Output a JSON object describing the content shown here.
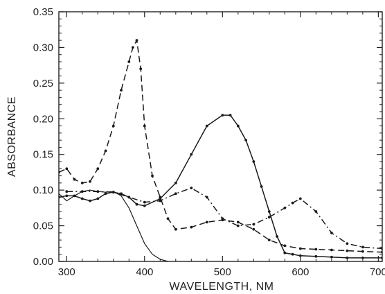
{
  "chart_data": {
    "type": "line",
    "title": "",
    "xlabel": "WAVELENGTH,  NM",
    "ylabel": "ABSORBANCE",
    "xlim": [
      290,
      705
    ],
    "ylim": [
      0,
      0.35
    ],
    "xticks": [
      300,
      400,
      500,
      600,
      700
    ],
    "yticks": [
      0.0,
      0.05,
      0.1,
      0.15,
      0.2,
      0.25,
      0.3,
      0.35
    ],
    "xtick_labels": [
      "300",
      "400",
      "500",
      "600",
      "700"
    ],
    "ytick_labels": [
      "0.00",
      "0.05",
      "0.10",
      "0.15",
      "0.20",
      "0.25",
      "0.30",
      "0.35"
    ],
    "grid": false,
    "legend": "none",
    "series": [
      {
        "style": "solid-thin",
        "markers": false,
        "x": [
          290,
          300,
          310,
          320,
          330,
          340,
          350,
          360,
          370,
          380,
          390,
          400,
          410,
          420,
          430
        ],
        "y": [
          0.095,
          0.085,
          0.092,
          0.098,
          0.1,
          0.098,
          0.097,
          0.098,
          0.092,
          0.075,
          0.05,
          0.025,
          0.01,
          0.003,
          0.0
        ]
      },
      {
        "style": "dashed",
        "markers": true,
        "x": [
          290,
          300,
          310,
          320,
          330,
          340,
          350,
          360,
          370,
          380,
          385,
          390,
          395,
          400,
          410,
          420,
          430,
          440,
          460,
          480,
          500,
          520,
          540,
          560,
          580,
          600,
          620,
          640,
          660,
          680,
          705
        ],
        "y": [
          0.125,
          0.13,
          0.115,
          0.11,
          0.112,
          0.13,
          0.155,
          0.19,
          0.24,
          0.28,
          0.3,
          0.31,
          0.27,
          0.19,
          0.12,
          0.09,
          0.06,
          0.045,
          0.048,
          0.055,
          0.058,
          0.055,
          0.045,
          0.03,
          0.022,
          0.018,
          0.017,
          0.016,
          0.015,
          0.014,
          0.013
        ]
      },
      {
        "style": "solid",
        "markers": true,
        "x": [
          290,
          300,
          310,
          320,
          330,
          340,
          350,
          360,
          370,
          380,
          390,
          400,
          420,
          440,
          460,
          480,
          500,
          510,
          520,
          530,
          540,
          550,
          560,
          570,
          580,
          590,
          600,
          620,
          640,
          660,
          680,
          705
        ],
        "y": [
          0.09,
          0.092,
          0.092,
          0.088,
          0.085,
          0.088,
          0.095,
          0.097,
          0.095,
          0.09,
          0.08,
          0.078,
          0.088,
          0.11,
          0.15,
          0.19,
          0.205,
          0.205,
          0.19,
          0.17,
          0.14,
          0.105,
          0.07,
          0.035,
          0.012,
          0.01,
          0.008,
          0.007,
          0.006,
          0.005,
          0.005,
          0.005
        ]
      },
      {
        "style": "dash-dot",
        "markers": true,
        "x": [
          300,
          320,
          340,
          360,
          380,
          400,
          420,
          440,
          460,
          480,
          500,
          520,
          540,
          560,
          580,
          590,
          600,
          620,
          640,
          660,
          680,
          705
        ],
        "y": [
          0.098,
          0.098,
          0.098,
          0.097,
          0.09,
          0.083,
          0.085,
          0.095,
          0.103,
          0.09,
          0.06,
          0.05,
          0.052,
          0.062,
          0.075,
          0.082,
          0.088,
          0.07,
          0.04,
          0.025,
          0.02,
          0.018
        ]
      }
    ]
  }
}
